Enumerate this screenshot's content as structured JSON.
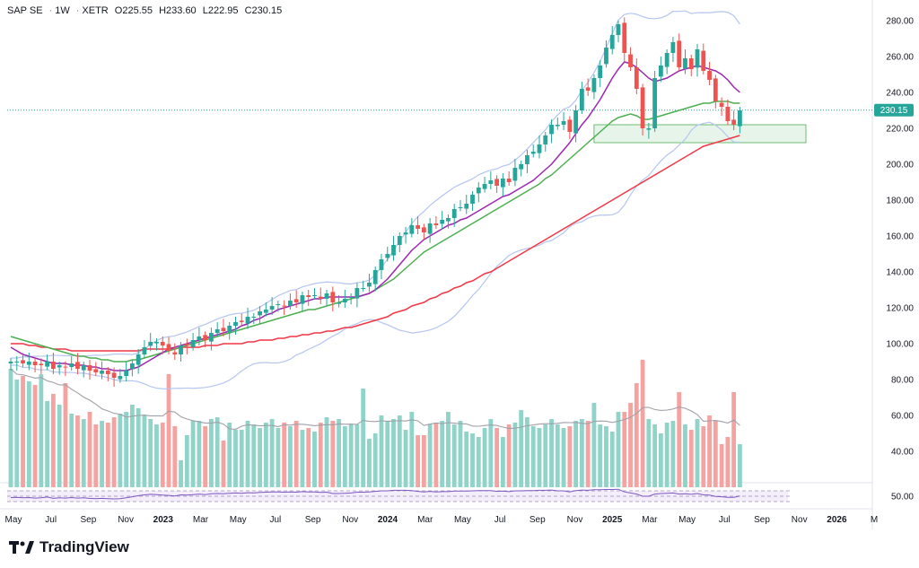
{
  "header": {
    "symbol": "SAP SE",
    "interval": "1W",
    "exchange": "XETR",
    "open_label": "O",
    "open": "225.55",
    "high_label": "H",
    "high": "233.60",
    "low_label": "L",
    "low": "222.95",
    "close_label": "C",
    "close": "230.15"
  },
  "brand": {
    "name": "TradingView"
  },
  "colors": {
    "up": "#26a69a",
    "down": "#ef5350",
    "vol_up": "#8fd3c9",
    "vol_down": "#f4a3a1",
    "ma_purple": "#9c27b0",
    "ma_green": "#4caf50",
    "ma_red": "#f23645",
    "bollinger": "#b4c5f0",
    "zone": "#e6f4ea",
    "zone_border": "#4caf50",
    "last_price_bg": "#26a69a"
  },
  "chart_data": {
    "type": "candlestick",
    "price_axis": {
      "ticks": [
        100,
        120,
        140,
        160,
        180,
        200,
        220,
        240,
        260,
        280
      ],
      "range": [
        70,
        290
      ]
    },
    "volume_axis": {
      "ticks": [
        40,
        60,
        80
      ],
      "range": [
        20,
        100
      ]
    },
    "rsi_axis": {
      "ticks": [
        50
      ],
      "range": [
        30,
        80
      ]
    },
    "time_labels": [
      "May",
      "Jul",
      "Sep",
      "Nov",
      "2023",
      "Mar",
      "May",
      "Jul",
      "Sep",
      "Nov",
      "2024",
      "Mar",
      "May",
      "Jul",
      "Sep",
      "Nov",
      "2025",
      "Mar",
      "May",
      "Jul",
      "Sep",
      "Nov",
      "2026",
      "M"
    ],
    "bold_time_labels": [
      "2023",
      "2024",
      "2025",
      "2026"
    ],
    "last_price": "230.15",
    "support_zone": [
      212,
      222
    ],
    "closes": [
      90,
      90,
      89,
      90,
      88,
      88,
      90,
      86,
      88,
      87,
      89,
      86,
      88,
      85,
      84,
      85,
      83,
      81,
      82,
      85,
      89,
      94,
      98,
      101,
      101,
      99,
      96,
      94,
      99,
      99,
      102,
      104,
      102,
      106,
      108,
      107,
      110,
      112,
      112,
      115,
      115,
      118,
      119,
      121,
      122,
      121,
      124,
      123,
      127,
      126,
      127,
      125,
      128,
      123,
      123,
      125,
      126,
      131,
      131,
      134,
      141,
      147,
      150,
      155,
      160,
      162,
      166,
      164,
      162,
      167,
      166,
      169,
      170,
      175,
      176,
      178,
      183,
      187,
      189,
      191,
      188,
      192,
      190,
      198,
      200,
      205,
      207,
      211,
      216,
      222,
      222,
      224,
      218,
      230,
      242,
      241,
      248,
      255,
      265,
      272,
      278,
      262,
      254,
      242,
      220,
      220,
      248,
      255,
      262,
      268,
      254,
      259,
      253,
      264,
      252,
      247,
      235,
      232,
      224,
      222,
      230
    ],
    "ma_purple": [
      98,
      96,
      94,
      93,
      92,
      91,
      90,
      89,
      89,
      89,
      88,
      88,
      88,
      87,
      87,
      86,
      86,
      85,
      85,
      85,
      86,
      87,
      89,
      91,
      93,
      95,
      97,
      98,
      99,
      100,
      101,
      102,
      103,
      104,
      105,
      106,
      107,
      108,
      110,
      111,
      113,
      114,
      116,
      117,
      119,
      120,
      121,
      122,
      123,
      124,
      125,
      125,
      126,
      126,
      126,
      126,
      126,
      126,
      127,
      128,
      130,
      133,
      136,
      140,
      144,
      148,
      152,
      155,
      158,
      160,
      162,
      164,
      166,
      167,
      169,
      170,
      172,
      174,
      176,
      178,
      180,
      182,
      183,
      185,
      187,
      189,
      191,
      194,
      197,
      200,
      204,
      208,
      212,
      217,
      222,
      226,
      231,
      236,
      242,
      248,
      253,
      257,
      256,
      254,
      251,
      248,
      246,
      247,
      248,
      250,
      252,
      253,
      254,
      255,
      254,
      253,
      252,
      250,
      247,
      243,
      240
    ],
    "ma_green": [
      104,
      103,
      102,
      101,
      100,
      99,
      98,
      97,
      96,
      95,
      94,
      93,
      93,
      92,
      92,
      91,
      91,
      90,
      90,
      90,
      91,
      91,
      92,
      93,
      94,
      95,
      96,
      97,
      98,
      99,
      100,
      101,
      102,
      103,
      104,
      105,
      106,
      107,
      108,
      109,
      110,
      111,
      112,
      113,
      114,
      115,
      116,
      117,
      118,
      119,
      119,
      120,
      121,
      122,
      123,
      124,
      125,
      126,
      127,
      128,
      130,
      132,
      134,
      136,
      139,
      142,
      145,
      148,
      151,
      153,
      155,
      157,
      159,
      161,
      163,
      165,
      167,
      169,
      171,
      173,
      175,
      177,
      179,
      181,
      183,
      185,
      187,
      189,
      192,
      194,
      197,
      200,
      203,
      206,
      209,
      212,
      215,
      218,
      221,
      224,
      226,
      227,
      228,
      227,
      225,
      225,
      226,
      227,
      228,
      229,
      230,
      231,
      232,
      233,
      234,
      234,
      235,
      235,
      235,
      234,
      234
    ],
    "ma_red": [
      100,
      100,
      100,
      99,
      99,
      98,
      98,
      97,
      97,
      97,
      96,
      96,
      96,
      96,
      96,
      96,
      96,
      96,
      96,
      96,
      96,
      96,
      97,
      97,
      97,
      97,
      97,
      97,
      98,
      98,
      98,
      98,
      99,
      99,
      99,
      100,
      100,
      100,
      100,
      101,
      101,
      102,
      102,
      102,
      103,
      103,
      104,
      104,
      105,
      105,
      106,
      106,
      107,
      107,
      108,
      109,
      109,
      110,
      111,
      112,
      113,
      114,
      115,
      117,
      118,
      119,
      121,
      122,
      123,
      125,
      126,
      128,
      129,
      131,
      132,
      134,
      135,
      137,
      139,
      140,
      142,
      144,
      146,
      148,
      150,
      152,
      154,
      156,
      158,
      160,
      162,
      164,
      166,
      168,
      170,
      172,
      174,
      176,
      178,
      180,
      182,
      184,
      186,
      188,
      190,
      192,
      194,
      196,
      198,
      200,
      202,
      204,
      206,
      208,
      210,
      211,
      212,
      213,
      214,
      215,
      216
    ],
    "volumes": [
      86,
      80,
      82,
      79,
      77,
      83,
      68,
      72,
      66,
      78,
      61,
      60,
      58,
      62,
      55,
      57,
      56,
      59,
      61,
      62,
      66,
      64,
      60,
      58,
      55,
      56,
      83,
      54,
      35,
      49,
      57,
      57,
      54,
      58,
      59,
      46,
      56,
      52,
      52,
      57,
      55,
      53,
      56,
      58,
      53,
      56,
      54,
      57,
      52,
      53,
      51,
      56,
      59,
      57,
      58,
      54,
      55,
      55,
      75,
      47,
      50,
      60,
      57,
      58,
      60,
      52,
      62,
      49,
      49,
      55,
      56,
      57,
      62,
      55,
      57,
      51,
      50,
      48,
      53,
      58,
      53,
      48,
      55,
      56,
      63,
      59,
      54,
      53,
      55,
      58,
      55,
      53,
      54,
      57,
      58,
      57,
      67,
      55,
      54,
      51,
      62,
      62,
      67,
      78,
      91,
      58,
      55,
      50,
      56,
      57,
      73,
      55,
      52,
      58,
      54,
      60,
      57,
      44,
      48,
      73,
      44
    ],
    "rsi": [
      45,
      46,
      44,
      45,
      43,
      44,
      47,
      42,
      44,
      43,
      45,
      43,
      44,
      42,
      41,
      42,
      41,
      40,
      41,
      44,
      48,
      52,
      55,
      57,
      56,
      54,
      53,
      51,
      55,
      54,
      56,
      58,
      56,
      59,
      60,
      59,
      61,
      62,
      61,
      63,
      62,
      64,
      65,
      66,
      66,
      65,
      66,
      65,
      67,
      66,
      66,
      64,
      65,
      60,
      60,
      61,
      62,
      65,
      65,
      66,
      68,
      70,
      70,
      72,
      72,
      72,
      71,
      68,
      66,
      68,
      66,
      67,
      67,
      69,
      69,
      69,
      70,
      71,
      71,
      71,
      68,
      69,
      67,
      70,
      70,
      71,
      71,
      72,
      72,
      73,
      70,
      70,
      66,
      71,
      73,
      72,
      74,
      74,
      75,
      75,
      76,
      66,
      62,
      58,
      50,
      50,
      58,
      60,
      61,
      62,
      58,
      59,
      57,
      60,
      55,
      54,
      49,
      48,
      46,
      46,
      51
    ]
  }
}
